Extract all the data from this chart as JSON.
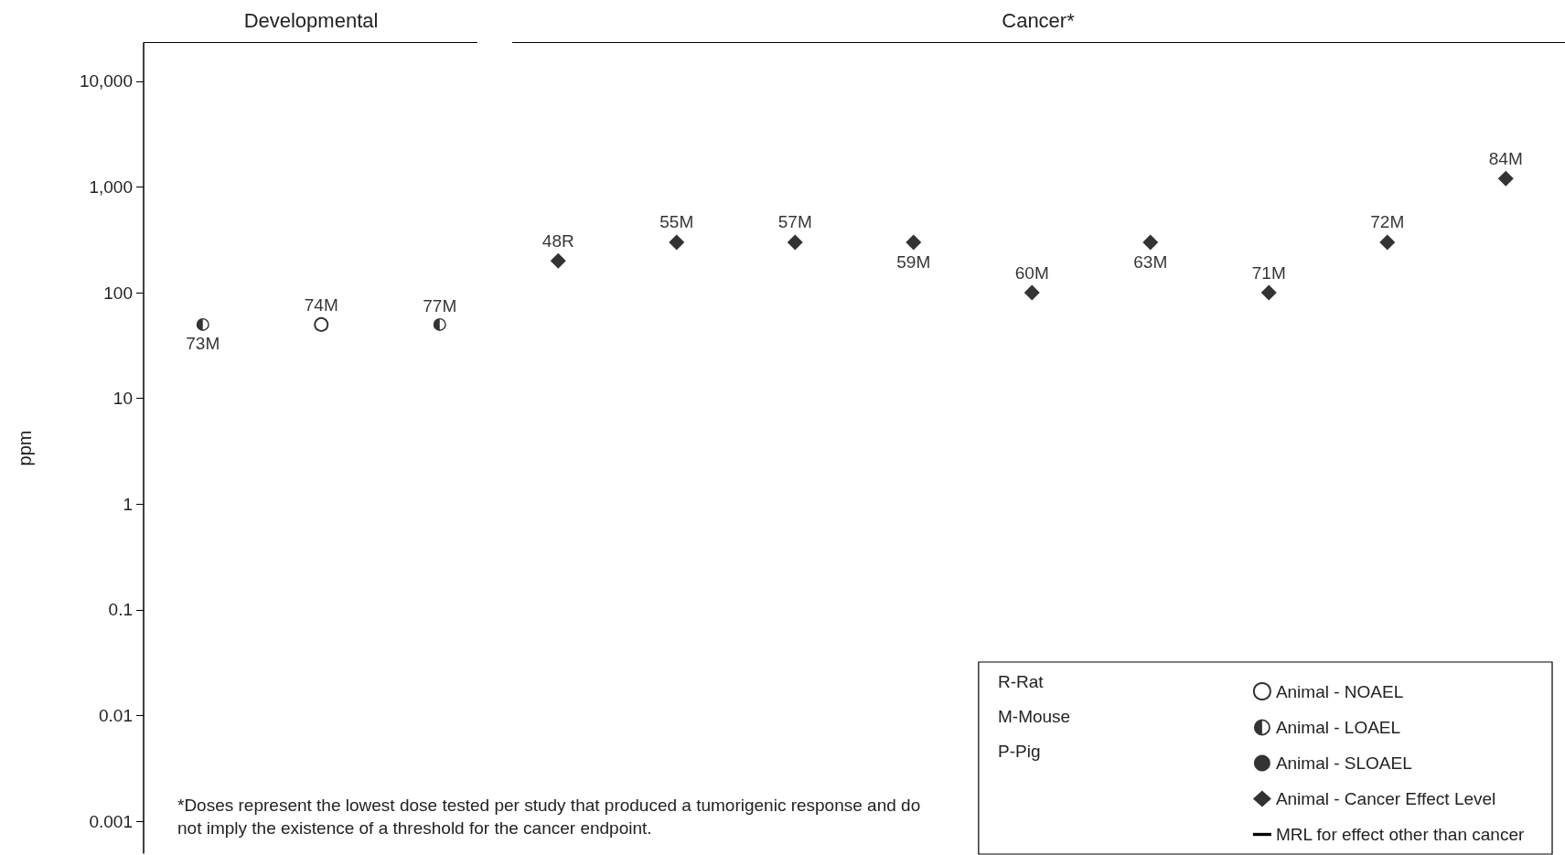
{
  "chart_data": {
    "type": "scatter",
    "ylabel": "ppm",
    "categories": [
      "73M",
      "74M",
      "77M",
      "48R",
      "55M",
      "57M",
      "59M",
      "60M",
      "63M",
      "71M",
      "72M",
      "84M"
    ],
    "log": true,
    "grid": false,
    "legend": "bottom right",
    "ylim": [
      0.0005,
      23000
    ],
    "yticks": [
      0.001,
      0.01,
      0.1,
      1,
      10,
      100,
      {
        "value": 1000,
        "label": "1,000"
      },
      {
        "value": 10000,
        "label": "10,000"
      }
    ],
    "series": [
      {
        "name": "Animal - NOAEL",
        "color": "#000000",
        "marker": "circle",
        "values": [
          null,
          50,
          null,
          null,
          null,
          null,
          null,
          null,
          null,
          null,
          null,
          null
        ]
      },
      {
        "name": "Animal - LOAEL",
        "color": "#000000",
        "marker": "circle",
        "values": [
          50,
          null,
          50,
          null,
          null,
          null,
          null,
          null,
          null,
          null,
          null,
          null
        ]
      },
      {
        "name": "Animal - SLOAEL",
        "color": "#000000",
        "marker": "circle",
        "values": [
          null,
          null,
          null,
          null,
          null,
          null,
          null,
          null,
          null,
          null,
          null,
          null
        ]
      },
      {
        "name": "Animal - Cancer Effect Level",
        "color": "#000000",
        "marker": "diamond",
        "values": [
          null,
          null,
          null,
          200,
          300,
          300,
          300,
          100,
          300,
          100,
          300,
          1200
        ]
      },
      {
        "name": "MRL for effect other than cancer",
        "type": "line",
        "color": "#000000",
        "marker": "none",
        "values": [
          null,
          null,
          null,
          null,
          null,
          null,
          null,
          null,
          null,
          null,
          null,
          null
        ]
      }
    ],
    "annotations": [
      "Developmental",
      "Cancer*",
      "*Doses represent the lowest dose tested per study that produced a tumorigenic response and do not imply the existence of a threshold for the cancer endpoint.",
      "R-Rat",
      "M-Mouse",
      "P-Pig"
    ]
  }
}
